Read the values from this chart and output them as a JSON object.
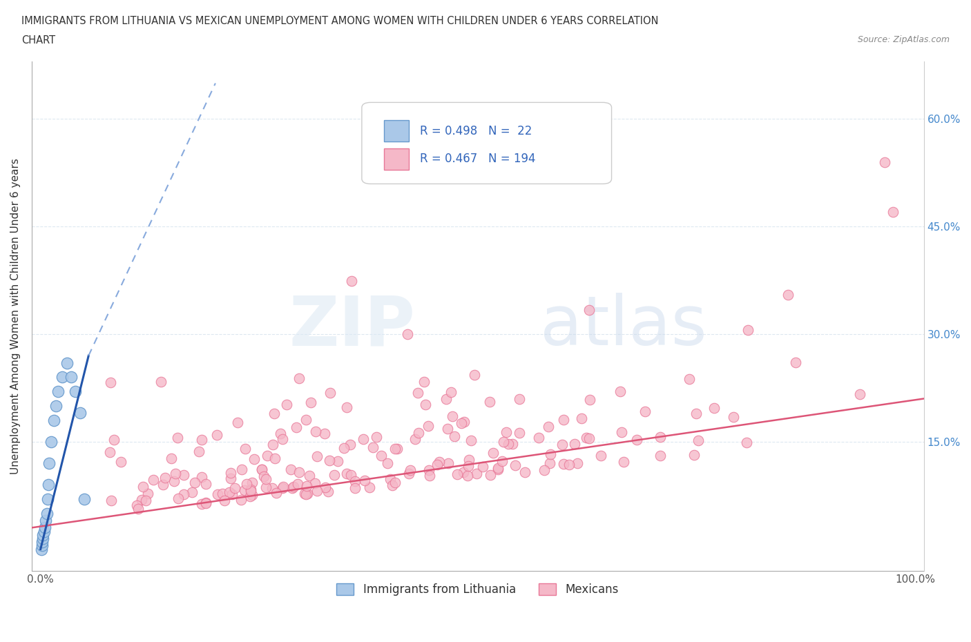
{
  "title_line1": "IMMIGRANTS FROM LITHUANIA VS MEXICAN UNEMPLOYMENT AMONG WOMEN WITH CHILDREN UNDER 6 YEARS CORRELATION",
  "title_line2": "CHART",
  "source": "Source: ZipAtlas.com",
  "ylabel": "Unemployment Among Women with Children Under 6 years",
  "xlim": [
    -0.01,
    1.01
  ],
  "ylim": [
    -0.03,
    0.68
  ],
  "xticks": [
    0.0,
    0.1,
    0.2,
    0.3,
    0.4,
    0.5,
    0.6,
    0.7,
    0.8,
    0.9,
    1.0
  ],
  "xticklabels": [
    "0.0%",
    "",
    "",
    "",
    "",
    "",
    "",
    "",
    "",
    "",
    "100.0%"
  ],
  "yticks": [
    0.0,
    0.15,
    0.3,
    0.45,
    0.6
  ],
  "yticklabels_right": [
    "",
    "15.0%",
    "30.0%",
    "45.0%",
    "60.0%"
  ],
  "yticklabels_left": [
    "",
    "",
    "",
    "",
    ""
  ],
  "R_blue": 0.498,
  "N_blue": 22,
  "R_pink": 0.467,
  "N_pink": 194,
  "legend_labels": [
    "Immigrants from Lithuania",
    "Mexicans"
  ],
  "blue_color": "#aac8e8",
  "blue_edge": "#6699cc",
  "pink_color": "#f5b8c8",
  "pink_edge": "#e87898",
  "blue_line_solid_color": "#2255aa",
  "blue_line_dash_color": "#88aadd",
  "pink_line_color": "#dd5577",
  "grid_color": "#dde8f0",
  "grid_style": "--",
  "blue_scatter_x": [
    0.001,
    0.002,
    0.002,
    0.003,
    0.003,
    0.004,
    0.005,
    0.006,
    0.007,
    0.008,
    0.009,
    0.01,
    0.012,
    0.015,
    0.018,
    0.02,
    0.025,
    0.03,
    0.035,
    0.04,
    0.045,
    0.05
  ],
  "blue_scatter_y": [
    0.0,
    0.005,
    0.01,
    0.015,
    0.02,
    0.025,
    0.03,
    0.04,
    0.05,
    0.07,
    0.09,
    0.12,
    0.15,
    0.18,
    0.2,
    0.22,
    0.24,
    0.26,
    0.24,
    0.22,
    0.19,
    0.07
  ],
  "blue_trend_x0": 0.0,
  "blue_trend_y0": 0.0,
  "blue_trend_x1": 0.055,
  "blue_trend_y1": 0.27,
  "blue_trend_ext_x1": 0.2,
  "blue_trend_ext_y1": 0.65,
  "pink_trend_x0": -0.01,
  "pink_trend_y0": 0.03,
  "pink_trend_x1": 1.01,
  "pink_trend_y1": 0.21
}
